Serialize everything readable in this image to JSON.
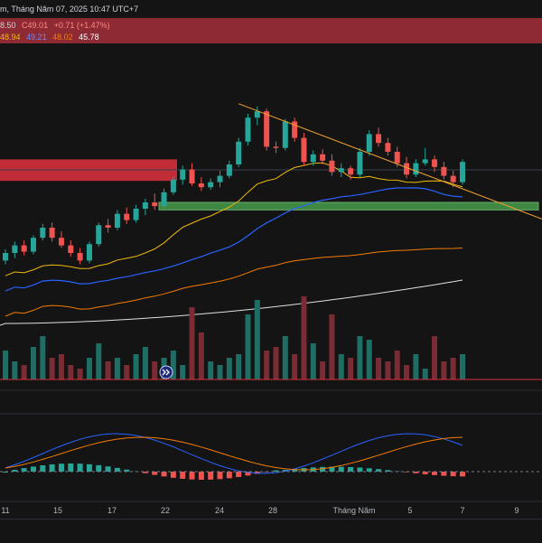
{
  "header": {
    "datetime": "m, Tháng Năm 07, 2025 10:47 UTC+7"
  },
  "ohlc": {
    "row1": [
      "8.50",
      "C49.01",
      "+0.71 (+1.47%)"
    ],
    "row2": [
      "48.94",
      "49.21",
      "48.02",
      "45.78"
    ]
  },
  "colors": {
    "background": "#141414",
    "up": "#26a69a",
    "down": "#ef5350",
    "ma_fast": "#f0b90b",
    "ma_mid": "#2962ff",
    "ma_slow": "#f57c00",
    "ma_long": "#e0e0e0",
    "trendline": "#f0a030",
    "support_zone": "#4caf50",
    "resistance_zone": "#d3303c"
  },
  "icons": [
    "double-chevron-icon"
  ],
  "x_axis": {
    "labels": [
      "11",
      "15",
      "17",
      "22",
      "24",
      "28",
      "Tháng Năm",
      "5",
      "7",
      "9"
    ]
  },
  "chart_data": {
    "type": "candlestick",
    "title": "",
    "note": "price in arbitrary chart units, approximated from the screenshot",
    "candles": [
      [
        1,
        36.9,
        37.8,
        36.6,
        37.5
      ],
      [
        2,
        37.5,
        38.4,
        37.1,
        38.1
      ],
      [
        3,
        38.1,
        38.5,
        37.3,
        37.6
      ],
      [
        4,
        37.6,
        38.9,
        37.4,
        38.7
      ],
      [
        5,
        38.7,
        39.8,
        38.5,
        39.5
      ],
      [
        6,
        39.5,
        39.9,
        38.4,
        38.7
      ],
      [
        7,
        38.7,
        39.2,
        37.9,
        38.1
      ],
      [
        8,
        38.1,
        38.5,
        37.2,
        37.5
      ],
      [
        9,
        37.5,
        37.9,
        36.6,
        36.9
      ],
      [
        10,
        36.9,
        38.4,
        36.7,
        38.2
      ],
      [
        11,
        38.2,
        39.9,
        38.0,
        39.7
      ],
      [
        12,
        39.7,
        40.2,
        39.1,
        39.5
      ],
      [
        13,
        39.5,
        40.9,
        39.3,
        40.6
      ],
      [
        14,
        40.6,
        41.1,
        39.8,
        40.1
      ],
      [
        15,
        40.1,
        41.3,
        39.9,
        41.0
      ],
      [
        16,
        41.0,
        41.8,
        40.5,
        41.5
      ],
      [
        17,
        41.5,
        42.2,
        40.9,
        41.2
      ],
      [
        18,
        41.2,
        42.6,
        41.0,
        42.3
      ],
      [
        19,
        42.3,
        43.5,
        42.1,
        43.3
      ],
      [
        20,
        43.3,
        44.4,
        42.9,
        44.1
      ],
      [
        21,
        44.1,
        44.6,
        42.8,
        43.0
      ],
      [
        22,
        43.0,
        43.5,
        42.4,
        42.7
      ],
      [
        23,
        42.7,
        43.4,
        42.5,
        43.1
      ],
      [
        24,
        43.1,
        44.0,
        42.7,
        43.6
      ],
      [
        25,
        43.6,
        44.8,
        43.4,
        44.5
      ],
      [
        26,
        44.5,
        46.6,
        44.3,
        46.3
      ],
      [
        27,
        46.3,
        48.5,
        46.0,
        48.2
      ],
      [
        28,
        48.2,
        49.1,
        47.6,
        48.7
      ],
      [
        29,
        48.7,
        48.9,
        45.6,
        45.9
      ],
      [
        30,
        45.9,
        46.3,
        45.4,
        45.8
      ],
      [
        31,
        45.8,
        48.1,
        45.6,
        47.9
      ],
      [
        32,
        47.9,
        48.2,
        46.3,
        46.6
      ],
      [
        33,
        46.6,
        47.0,
        44.4,
        44.7
      ],
      [
        34,
        44.7,
        45.6,
        44.4,
        45.3
      ],
      [
        35,
        45.3,
        45.7,
        44.5,
        44.8
      ],
      [
        36,
        44.8,
        45.3,
        43.6,
        43.9
      ],
      [
        37,
        43.9,
        44.6,
        43.5,
        44.2
      ],
      [
        38,
        44.2,
        44.4,
        43.3,
        43.7
      ],
      [
        39,
        43.7,
        45.8,
        43.5,
        45.5
      ],
      [
        40,
        45.5,
        47.2,
        45.2,
        46.9
      ],
      [
        41,
        46.9,
        47.4,
        45.9,
        46.2
      ],
      [
        42,
        46.2,
        46.6,
        45.2,
        45.5
      ],
      [
        43,
        45.5,
        45.9,
        44.3,
        44.6
      ],
      [
        44,
        44.6,
        45.1,
        43.4,
        43.7
      ],
      [
        45,
        43.7,
        44.9,
        43.5,
        44.6
      ],
      [
        46,
        44.6,
        45.8,
        44.4,
        44.9
      ],
      [
        47,
        44.9,
        45.2,
        43.9,
        44.3
      ],
      [
        48,
        44.3,
        44.7,
        43.3,
        43.6
      ],
      [
        49,
        43.6,
        44.0,
        42.7,
        43.1
      ],
      [
        50,
        43.1,
        44.9,
        42.9,
        44.7
      ]
    ],
    "volume": [
      8,
      5,
      4,
      9,
      12,
      6,
      7,
      4,
      3,
      6,
      10,
      5,
      6,
      4,
      7,
      9,
      5,
      6,
      8,
      4,
      20,
      13,
      5,
      4,
      6,
      7,
      18,
      22,
      8,
      9,
      12,
      7,
      23,
      10,
      5,
      18,
      7,
      6,
      12,
      11,
      6,
      5,
      8,
      4,
      7,
      3,
      12,
      5,
      6,
      7
    ],
    "resistance_zone": [
      43.2,
      44.9
    ],
    "support_zone": [
      40.9,
      41.5
    ],
    "trendline": [
      [
        26,
        49.3
      ],
      [
        52,
        44.2
      ]
    ]
  }
}
